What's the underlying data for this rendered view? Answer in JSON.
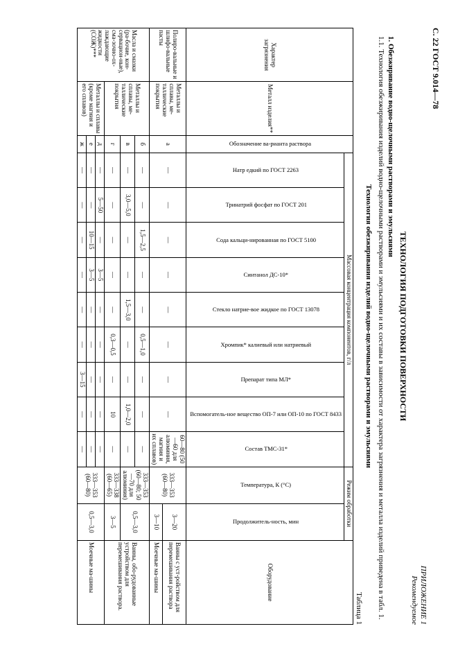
{
  "pageHeader": "С. 22 ГОСТ 9.014—78",
  "annex1": "ПРИЛОЖЕНИЕ 1",
  "annex2": "Рекомендуемое",
  "mainTitle": "ТЕХНОЛОГИЯ ПОДГОТОВКИ ПОВЕРХНОСТИ",
  "sec1": "1. Обезжиривание водно-щелочными растворами и эмульсиями",
  "sec11": "1.1. Технология обезжиривания изделий водно-щелочными растворами и эмульсиями и их составы в зависимости от характера загрязнения и металла изделий приведена в табл. 1.",
  "tableName": "Технология обезжиривания изделий водно-щелочными растворами и эмульсиями",
  "tableNum": "Таблица 1",
  "headers": {
    "contam": "Характер загрязнения",
    "metal": "Металл изделия**",
    "variant": "Обозначение ва-рианта раствора",
    "massGroup": "Массовая концентрация компонентов, г/л",
    "modeGroup": "Режим обработки",
    "equipment": "Оборудование",
    "c1": "Натр едкий по ГОСТ 2263",
    "c2": "Тринатрий фосфат по ГОСТ 201",
    "c3": "Сода кальци-нированная по ГОСТ 5100",
    "c4": "Синтанол ДС-10*",
    "c5": "Стекло натрие-вое жидкое по ГОСТ 13078",
    "c6": "Хромпик* калиевый или натриевый",
    "c7": "Препарат типа МЛ*",
    "c8": "Вспомогатель-ное вещество ОП-7 или ОП-10 по ГОСТ 8433",
    "c9": "Состав ТМС-31*",
    "temp": "Температура, К (°С)",
    "dur": "Продолжитель-ность, мин"
  },
  "rows": [
    {
      "contam": "Полиро-вальные и шлифо-вальные пасты",
      "metal": "Металлы и сплавы, ме-таллические покрытия",
      "var": "а",
      "c1": "—",
      "c2": "—",
      "c3": "—",
      "c4": "—",
      "c5": "—",
      "c6": "—",
      "c7": "—",
      "c8": "—",
      "c9": "60—80 (50—60 для алюминия, магния и их сплавов)",
      "temp": "333—353 (60—80)",
      "dur": "3—20",
      "eq": "Ванны с уст-ройством для перемешивания раствора"
    },
    {
      "var": "",
      "c1": "",
      "c2": "",
      "c3": "",
      "c4": "",
      "c5": "",
      "c6": "",
      "c7": "",
      "c8": "",
      "c9": "",
      "temp": "",
      "dur": "3—10",
      "eq": "Моечные ма-шины"
    },
    {
      "contam": "Масла и смазки (ра-бочие, кон-сервацион-ные), сма-зочно-ох-лаждающие жидкости (СОЖ)***",
      "metal": "Металлы и сплавы, ме-таллические покрытия",
      "var": "б",
      "c1": "—",
      "c2": "—",
      "c3": "1,5—2,5",
      "c4": "—",
      "c5": "—",
      "c6": "0,5—1,0",
      "c7": "—",
      "c8": "—",
      "c9": "—",
      "temp": "333—353 (60—80; 50—70 для алюминия)",
      "dur": "0,5—3,0",
      "eq": "Ванны, обо-рудованные устройством для перемешивания раствора."
    },
    {
      "var": "в",
      "c1": "—",
      "c2": "3,0—5,0",
      "c3": "—",
      "c4": "—",
      "c5": "1,5—3,0",
      "c6": "—",
      "c7": "—",
      "c8": "1,0—2,0",
      "c9": "—",
      "temp": "",
      "dur": "",
      "eq": ""
    },
    {
      "var": "г",
      "c1": "—",
      "c2": "—",
      "c3": "—",
      "c4": "—",
      "c5": "—",
      "c6": "0,3—0,5",
      "c7": "—",
      "c8": "10",
      "c9": "—",
      "temp": "333—338 (60—65)",
      "dur": "3—5",
      "eq": ""
    },
    {
      "metal": "Металлы и сплавы (кроме магния и его сплавов)",
      "var": "д",
      "c1": "—",
      "c2": "5—50",
      "c3": "—",
      "c4": "3—5",
      "c5": "—",
      "c6": "—",
      "c7": "—",
      "c8": "—",
      "c9": "—",
      "temp": "333—353 (60—80)",
      "dur": "0,5—3,0",
      "eq": "Моечные ма-шины"
    },
    {
      "var": "е",
      "c1": "—",
      "c2": "—",
      "c3": "10—15",
      "c4": "3—5",
      "c5": "—",
      "c6": "—",
      "c7": "—",
      "c8": "—",
      "c9": "—",
      "temp": "",
      "dur": "",
      "eq": ""
    },
    {
      "var": "ж",
      "c1": "—",
      "c2": "—",
      "c3": "—",
      "c4": "—",
      "c5": "—",
      "c6": "—",
      "c7": "3—15",
      "c8": "—",
      "c9": "—",
      "temp": "",
      "dur": "",
      "eq": ""
    }
  ]
}
